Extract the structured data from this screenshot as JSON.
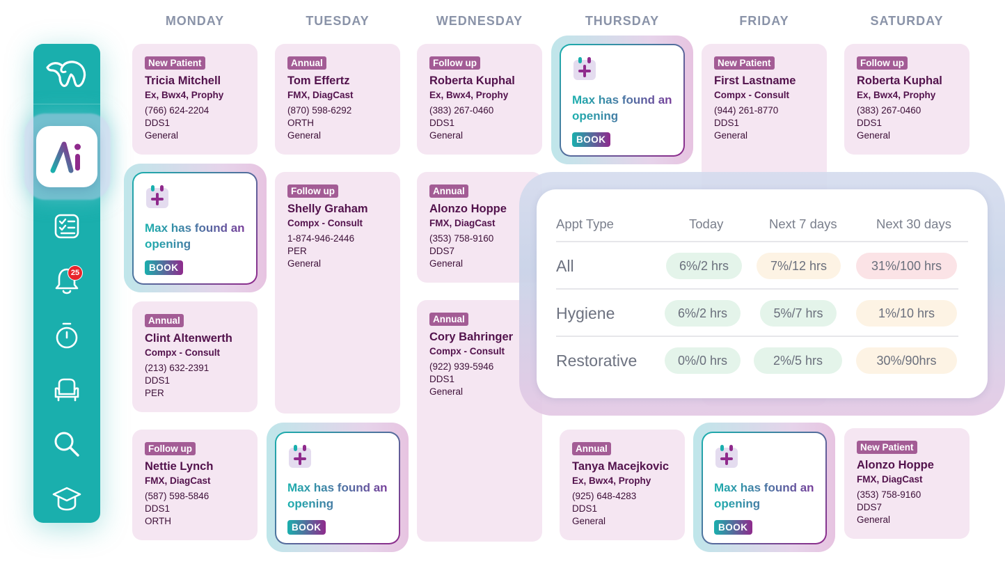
{
  "colors": {
    "brand_teal": "#1aafad",
    "brand_purple": "#8f2a8c",
    "tag_bg": "#a35c95",
    "card_bg": "#f5e6f2",
    "notification_red": "#e8242a"
  },
  "sidebar": {
    "logo_icon": "tooth-icon",
    "active_icon": "ai-icon",
    "items": [
      {
        "icon": "checklist-icon"
      },
      {
        "icon": "bell-icon",
        "badge": "25"
      },
      {
        "icon": "stopwatch-icon"
      },
      {
        "icon": "dental-chair-icon"
      },
      {
        "icon": "search-icon"
      },
      {
        "icon": "graduation-cap-icon"
      }
    ]
  },
  "days": [
    "MONDAY",
    "TUESDAY",
    "WEDNESDAY",
    "THURSDAY",
    "FRIDAY",
    "SATURDAY"
  ],
  "opening": {
    "text": "Max has found an opening",
    "book_label": "BOOK",
    "icon": "calendar-plus-icon"
  },
  "appointments": {
    "mon1": {
      "tag": "New Patient",
      "name": "Tricia Mitchell",
      "proc": "Ex, Bwx4, Prophy",
      "phone": "(766) 624-2204",
      "provider": "DDS1",
      "type": "General"
    },
    "mon3": {
      "tag": "Annual",
      "name": "Clint Altenwerth",
      "proc": "Compx - Consult",
      "phone": "(213) 632-2391",
      "provider": "DDS1",
      "type": "PER"
    },
    "mon4": {
      "tag": "Follow up",
      "name": "Nettie Lynch",
      "proc": "FMX, DiagCast",
      "phone": "(587) 598-5846",
      "provider": "DDS1",
      "type": "ORTH"
    },
    "tue1": {
      "tag": "Annual",
      "name": "Tom Effertz",
      "proc": "FMX, DiagCast",
      "phone": "(870) 598-6292",
      "provider": "ORTH",
      "type": "General"
    },
    "tue2": {
      "tag": "Follow up",
      "name": "Shelly Graham",
      "proc": "Compx - Consult",
      "phone": "1-874-946-2446",
      "provider": "PER",
      "type": "General"
    },
    "wed1": {
      "tag": "Follow up",
      "name": "Roberta Kuphal",
      "proc": "Ex, Bwx4, Prophy",
      "phone": "(383) 267-0460",
      "provider": "DDS1",
      "type": "General"
    },
    "wed2": {
      "tag": "Annual",
      "name": "Alonzo Hoppe",
      "proc": "FMX, DiagCast",
      "phone": "(353) 758-9160",
      "provider": "DDS7",
      "type": "General"
    },
    "wed3": {
      "tag": "Annual",
      "name": "Cory Bahringer",
      "proc": "Compx - Consult",
      "phone": "(922) 939-5946",
      "provider": "DDS1",
      "type": "General"
    },
    "thu2": {
      "tag": "Annual",
      "name": "Tanya Macejkovic",
      "proc": "Ex, Bwx4, Prophy",
      "phone": "(925) 648-4283",
      "provider": "DDS1",
      "type": "General"
    },
    "fri1": {
      "tag": "New Patient",
      "name": "First Lastname",
      "proc": "Compx - Consult",
      "phone": "(944) 261-8770",
      "provider": "DDS1",
      "type": "General"
    },
    "sat1": {
      "tag": "Follow up",
      "name": "Roberta Kuphal",
      "proc": "Ex, Bwx4, Prophy",
      "phone": "(383) 267-0460",
      "provider": "DDS1",
      "type": "General"
    },
    "sat2": {
      "tag": "New Patient",
      "name": "Alonzo Hoppe",
      "proc": "FMX, DiagCast",
      "phone": "(353) 758-9160",
      "provider": "DDS7",
      "type": "General"
    }
  },
  "stats": {
    "headers": [
      "Appt Type",
      "Today",
      "Next 7 days",
      "Next 30 days"
    ],
    "rows": [
      {
        "label": "All",
        "today": "6%/2 hrs",
        "next7": "7%/12 hrs",
        "next30": "31%/100 hrs"
      },
      {
        "label": "Hygiene",
        "today": "6%/2 hrs",
        "next7": "5%/7 hrs",
        "next30": "1%/10 hrs"
      },
      {
        "label": "Restorative",
        "today": "0%/0 hrs",
        "next7": "2%/5 hrs",
        "next30": "30%/90hrs"
      }
    ]
  }
}
